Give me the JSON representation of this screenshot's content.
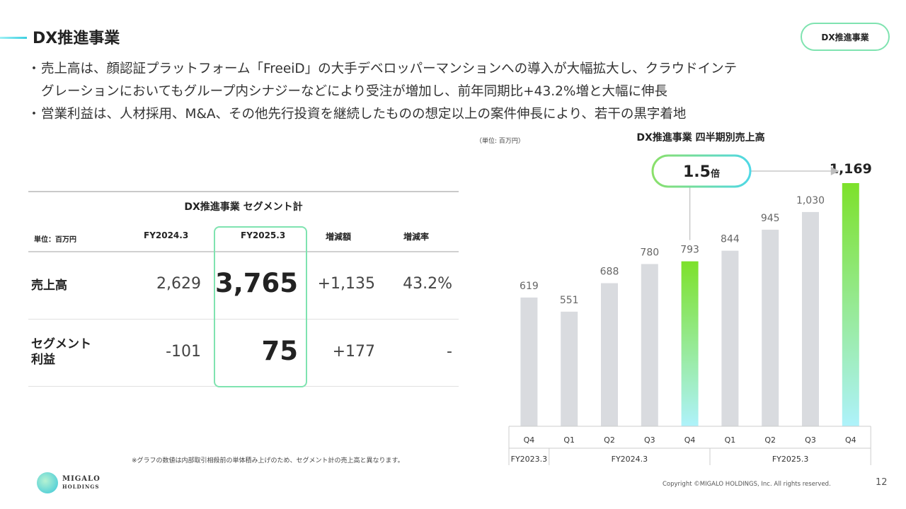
{
  "header": {
    "title": "DX推進事業",
    "tag": "DX推進事業"
  },
  "bullets": [
    {
      "dot": "・",
      "text": "売上高は、顔認証プラットフォーム「FreeiD」の大手デベロッパーマンションへの導入が大幅拡大し、クラウドインテ"
    },
    {
      "dot": "",
      "text": "グレーションにおいてもグループ内シナジーなどにより受注が増加し、前年同期比+43.2%増と大幅に伸長"
    },
    {
      "dot": "・",
      "text": "営業利益は、人材採用、M&A、その他先行投資を継続したものの想定以上の案件伸長により、若干の黒字着地"
    }
  ],
  "unit_note": "（単位: 百万円）",
  "table": {
    "title": "DX推進事業 セグメント計",
    "unit": "単位：百万円",
    "headers": [
      "FY2024.3",
      "FY2025.3",
      "増減額",
      "増減率"
    ],
    "rows": [
      {
        "label": "売上高",
        "fy2024": "2,629",
        "fy2025": "3,765",
        "diff": "+1,135",
        "rate": "43.2%"
      },
      {
        "label": "セグメント\n利益",
        "fy2024": "-101",
        "fy2025": "75",
        "diff": "+177",
        "rate": "-"
      }
    ]
  },
  "footnote": "※グラフの数値は内部取引相殺前の単体積み上げのため、セグメント計の売上高と異なります。",
  "logo": {
    "line1": "MIGALO",
    "line2": "HOLDINGS"
  },
  "footer": {
    "copyright": "Copyright ©MIGALO HOLDINGS, Inc. All rights reserved.",
    "page": "12"
  },
  "colors": {
    "accent_green": "#7de12a",
    "accent_cyan": "#aef2fb",
    "bar_gray": "#d9dbdf",
    "frame": "#7fe3b0"
  },
  "chart_data": {
    "type": "bar",
    "title": "DX推進事業 四半期別売上高",
    "categories": [
      "Q4",
      "Q1",
      "Q2",
      "Q3",
      "Q4",
      "Q1",
      "Q2",
      "Q3",
      "Q4"
    ],
    "fiscal_years": [
      {
        "label": "FY2023.3",
        "span": 1
      },
      {
        "label": "FY2024.3",
        "span": 4
      },
      {
        "label": "FY2025.3",
        "span": 4
      }
    ],
    "values": [
      619,
      551,
      688,
      780,
      793,
      844,
      945,
      1030,
      1169
    ],
    "value_labels": [
      "619",
      "551",
      "688",
      "780",
      "793",
      "844",
      "945",
      "1,030",
      "1,169"
    ],
    "highlight_indices": [
      4,
      8
    ],
    "ylim": [
      0,
      1250
    ],
    "annotation": {
      "value": "1.5",
      "unit": "倍",
      "from_index": 4,
      "to_index": 8
    },
    "grid": false
  }
}
